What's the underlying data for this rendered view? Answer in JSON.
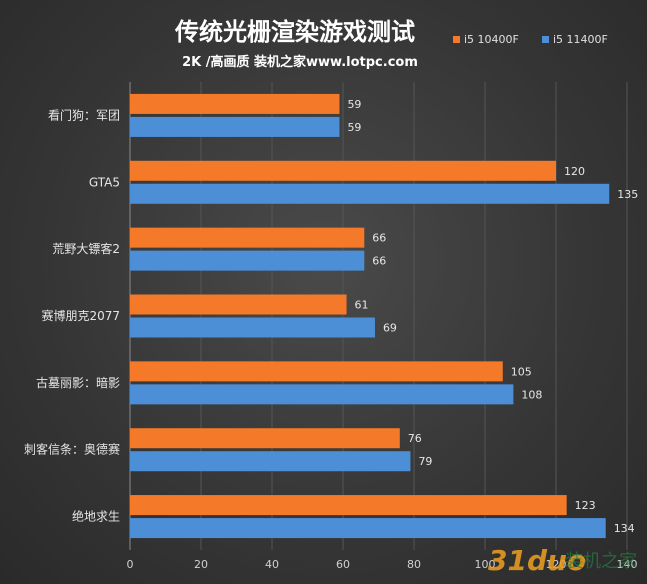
{
  "chart_data": {
    "type": "bar",
    "orientation": "horizontal",
    "title": "传统光栅渲染游戏测试",
    "subtitle": "2K /高画质 装机之家www.lotpc.com",
    "categories": [
      "看门狗：军团",
      "GTA5",
      "荒野大镖客2",
      "赛博朋克2077",
      "古墓丽影：暗影",
      "刺客信条：奥德赛",
      "绝地求生"
    ],
    "series": [
      {
        "name": "i5 10400F",
        "values": [
          59,
          120,
          66,
          61,
          105,
          76,
          123
        ],
        "color": "#f47a2a"
      },
      {
        "name": "i5 11400F",
        "values": [
          59,
          135,
          66,
          69,
          108,
          79,
          134
        ],
        "color": "#4d8fd6"
      }
    ],
    "xlim": [
      0,
      140
    ],
    "xticks": [
      "0",
      "20",
      "40",
      "60",
      "80",
      "100",
      "120",
      "140"
    ],
    "grid": true,
    "legend": "top-right"
  },
  "watermark": {
    "text": "31duo",
    "suffix": "装机之家"
  }
}
